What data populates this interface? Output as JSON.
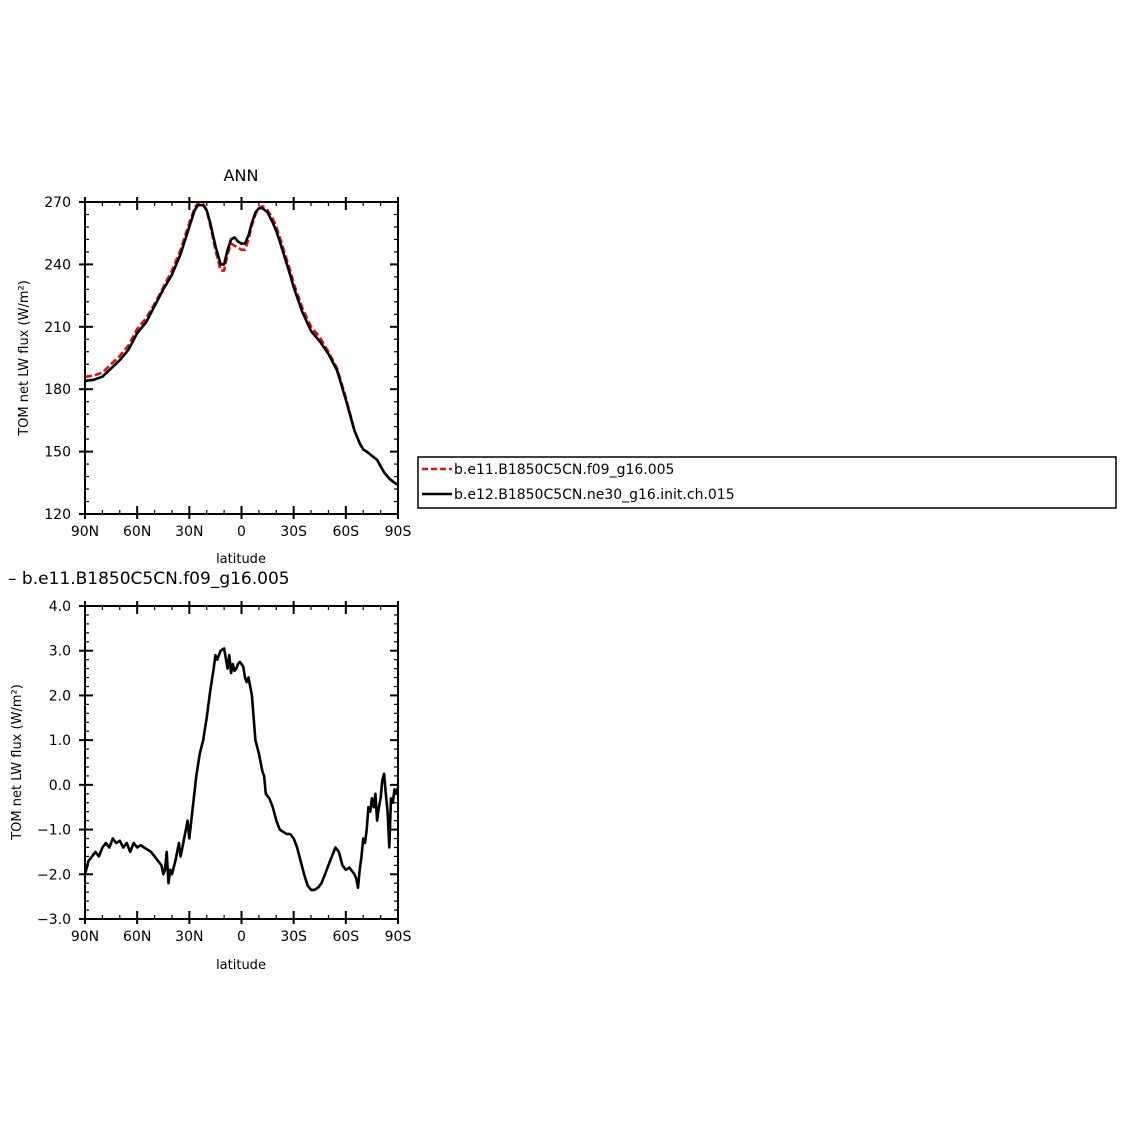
{
  "chart_data": [
    {
      "type": "line",
      "title": "ANN",
      "xlabel": "latitude",
      "ylabel": "TOM net LW flux (W/m²)",
      "xlim": [
        90,
        -90
      ],
      "ylim": [
        120,
        270
      ],
      "x_ticks": [
        90,
        60,
        30,
        0,
        -30,
        -60,
        -90
      ],
      "x_tick_labels": [
        "90N",
        "60N",
        "30N",
        "0",
        "30S",
        "60S",
        "90S"
      ],
      "y_ticks": [
        120,
        150,
        180,
        210,
        240,
        270
      ],
      "y_tick_labels": [
        "120",
        "150",
        "180",
        "210",
        "240",
        "270"
      ],
      "grid": false,
      "legend": "right",
      "series": [
        {
          "name": "b.e11.B1850C5CN.f09_g16.005",
          "color": "#e01010",
          "dash": "dashed",
          "x": [
            90,
            85,
            80,
            75,
            70,
            65,
            60,
            55,
            50,
            45,
            40,
            35,
            30,
            27,
            25,
            22,
            20,
            18,
            15,
            12,
            10,
            8,
            6,
            4,
            2,
            0,
            -2,
            -4,
            -6,
            -8,
            -10,
            -12,
            -15,
            -18,
            -20,
            -22,
            -25,
            -28,
            -30,
            -35,
            -40,
            -45,
            -50,
            -55,
            -60,
            -65,
            -68,
            -70,
            -72,
            -75,
            -78,
            -80,
            -82,
            -85,
            -88,
            -90
          ],
          "y": [
            186,
            186.5,
            188,
            192,
            196,
            201,
            209,
            214,
            221,
            229,
            237,
            247,
            260,
            267,
            269.5,
            269,
            266,
            259,
            247,
            237,
            237,
            245,
            250,
            249,
            248,
            247,
            247,
            252,
            259,
            264,
            267,
            268,
            266,
            262,
            258,
            253,
            245,
            237,
            231,
            219,
            210,
            205,
            198,
            190,
            176,
            160,
            154,
            151,
            150,
            148,
            146,
            143,
            140,
            137,
            135,
            134
          ]
        },
        {
          "name": "b.e12.B1850C5CN.ne30_g16.init.ch.015",
          "color": "#000000",
          "dash": "solid",
          "x": [
            90,
            85,
            80,
            75,
            70,
            65,
            60,
            55,
            50,
            45,
            40,
            35,
            30,
            27,
            25,
            22,
            20,
            18,
            15,
            12,
            10,
            8,
            6,
            4,
            2,
            0,
            -2,
            -4,
            -6,
            -8,
            -10,
            -12,
            -15,
            -18,
            -20,
            -22,
            -25,
            -28,
            -30,
            -35,
            -40,
            -45,
            -50,
            -55,
            -60,
            -65,
            -68,
            -70,
            -72,
            -75,
            -78,
            -80,
            -82,
            -85,
            -88,
            -90
          ],
          "y": [
            184,
            184.5,
            186,
            190,
            194,
            199,
            207,
            212,
            220,
            228,
            235,
            245,
            258,
            266,
            268.5,
            268.5,
            266,
            260,
            249,
            240,
            240,
            247,
            252,
            253,
            251,
            250,
            250,
            254,
            260,
            265,
            267,
            267,
            265,
            260,
            256,
            251,
            243,
            235,
            229,
            217,
            208,
            203,
            197,
            189,
            175,
            160,
            154,
            151,
            150,
            148,
            146,
            143,
            140,
            137,
            135,
            134
          ]
        }
      ]
    },
    {
      "type": "line",
      "title": "– b.e11.B1850C5CN.f09_g16.005",
      "xlabel": "latitude",
      "ylabel": "TOM net LW flux (W/m²)",
      "xlim": [
        90,
        -90
      ],
      "ylim": [
        -3.0,
        4.0
      ],
      "x_ticks": [
        90,
        60,
        30,
        0,
        -30,
        -60,
        -90
      ],
      "x_tick_labels": [
        "90N",
        "60N",
        "30N",
        "0",
        "30S",
        "60S",
        "90S"
      ],
      "y_ticks": [
        -3,
        -2,
        -1,
        0,
        1,
        2,
        3,
        4
      ],
      "y_tick_labels": [
        "−3.0",
        "−2.0",
        "−1.0",
        "0.0",
        "1.0",
        "2.0",
        "3.0",
        "4.0"
      ],
      "grid": false,
      "series": [
        {
          "color": "#000000",
          "dash": "solid",
          "x": [
            90,
            88,
            86,
            84,
            82,
            80,
            78,
            76,
            74,
            72,
            70,
            68,
            66,
            64,
            62,
            60,
            58,
            56,
            54,
            52,
            50,
            48,
            46,
            45,
            44,
            43,
            42,
            41,
            40,
            38,
            36,
            35,
            34,
            33,
            32,
            31,
            30,
            28,
            26,
            24,
            22,
            20,
            18,
            16,
            15,
            14,
            12,
            10,
            8,
            7,
            6,
            5,
            4,
            3,
            2,
            1,
            0,
            -1,
            -2,
            -3,
            -4,
            -5,
            -6,
            -8,
            -10,
            -12,
            -13,
            -14,
            -16,
            -18,
            -20,
            -22,
            -24,
            -26,
            -28,
            -30,
            -32,
            -34,
            -36,
            -38,
            -40,
            -42,
            -44,
            -46,
            -48,
            -50,
            -52,
            -54,
            -56,
            -58,
            -60,
            -62,
            -64,
            -65,
            -66,
            -67,
            -68,
            -69,
            -70,
            -71,
            -72,
            -73,
            -74,
            -75,
            -76,
            -77,
            -78,
            -79,
            -80,
            -81,
            -82,
            -83,
            -84,
            -85,
            -86,
            -87,
            -88,
            -89,
            -90
          ],
          "y": [
            -2.0,
            -1.7,
            -1.6,
            -1.5,
            -1.6,
            -1.4,
            -1.3,
            -1.4,
            -1.2,
            -1.3,
            -1.25,
            -1.4,
            -1.3,
            -1.5,
            -1.3,
            -1.4,
            -1.35,
            -1.4,
            -1.45,
            -1.5,
            -1.6,
            -1.7,
            -1.8,
            -2.0,
            -1.9,
            -1.5,
            -2.2,
            -1.9,
            -2.0,
            -1.7,
            -1.3,
            -1.6,
            -1.4,
            -1.2,
            -1.0,
            -0.8,
            -1.2,
            -0.5,
            0.2,
            0.7,
            1.0,
            1.5,
            2.1,
            2.6,
            2.9,
            2.8,
            3.0,
            3.05,
            2.6,
            2.9,
            2.5,
            2.7,
            2.55,
            2.6,
            2.7,
            2.75,
            2.7,
            2.65,
            2.4,
            2.3,
            2.4,
            2.2,
            2.0,
            1.0,
            0.7,
            0.3,
            0.2,
            -0.2,
            -0.3,
            -0.5,
            -0.8,
            -1.0,
            -1.05,
            -1.1,
            -1.1,
            -1.2,
            -1.4,
            -1.7,
            -2.0,
            -2.25,
            -2.35,
            -2.35,
            -2.3,
            -2.2,
            -2.0,
            -1.8,
            -1.6,
            -1.4,
            -1.5,
            -1.8,
            -1.9,
            -1.85,
            -1.95,
            -2.0,
            -2.1,
            -2.3,
            -1.9,
            -1.6,
            -1.2,
            -1.3,
            -1.0,
            -0.5,
            -0.6,
            -0.3,
            -0.5,
            -0.2,
            -0.8,
            -0.5,
            -0.3,
            0.1,
            0.25,
            -0.2,
            -0.6,
            -1.4,
            -0.3,
            -0.4,
            -0.1,
            -0.2,
            -0.05
          ]
        }
      ]
    }
  ]
}
